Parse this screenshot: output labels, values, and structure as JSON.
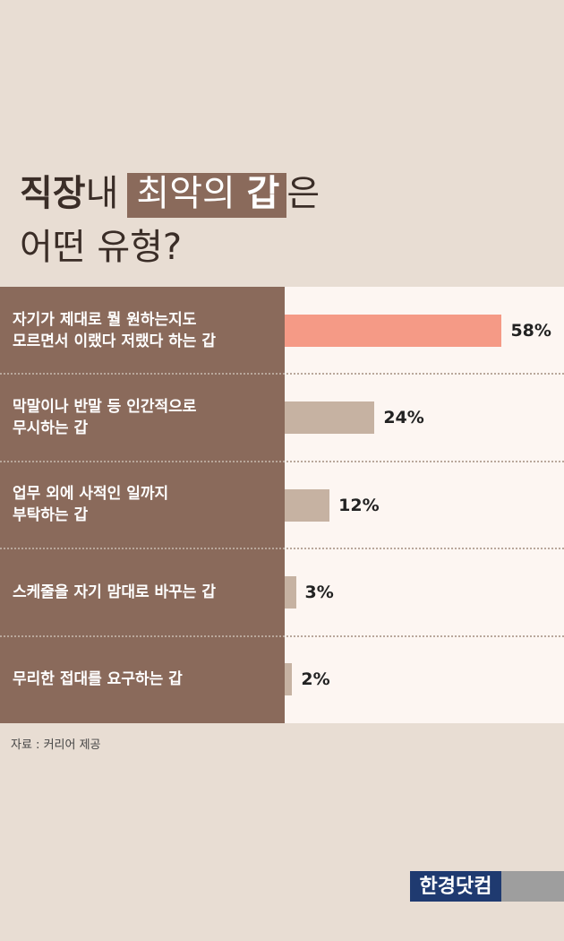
{
  "title": {
    "part1": "직장",
    "part2": "내",
    "part3": "최악의",
    "part4": "갑",
    "part5": "은",
    "line2": "어떤 유형?"
  },
  "chart_data": {
    "type": "bar",
    "orientation": "horizontal",
    "categories": [
      [
        "자기가 제대로 뭘 원하는지도",
        "모르면서 이랬다 저랬다 하는 갑"
      ],
      [
        "막말이나 반말 등 인간적으로",
        "무시하는 갑"
      ],
      [
        "업무 외에 사적인 일까지",
        "부탁하는 갑"
      ],
      [
        "스케줄을 자기 맘대로 바꾸는 갑"
      ],
      [
        "무리한 접대를 요구하는 갑"
      ]
    ],
    "values": [
      58,
      24,
      12,
      3,
      2
    ],
    "value_labels": [
      "58%",
      "24%",
      "12%",
      "3%",
      "2%"
    ],
    "unit": "%",
    "colors": [
      "#f59a86",
      "#c6b2a2",
      "#c6b2a2",
      "#c6b2a2",
      "#c6b2a2"
    ]
  },
  "source": "자료 : 커리어 제공",
  "logo": {
    "text": "한경닷컴",
    "color": "#1f3a70"
  }
}
